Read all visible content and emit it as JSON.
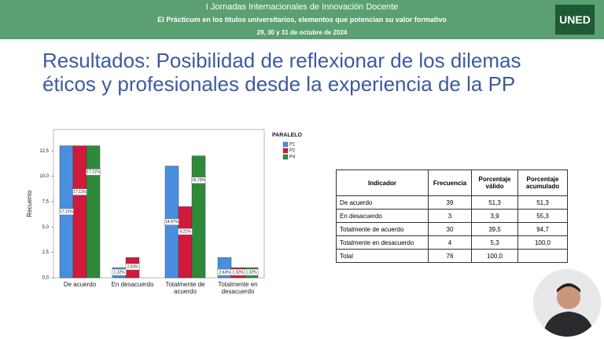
{
  "header": {
    "event": "I Jornadas Internacionales de Innovación Docente",
    "subtitle": "El Prácticum en los títulos universitarios, elementos que potencian su valor formativo",
    "dates": "29, 30 y 31 de octubre de 2024",
    "logo": "UNED"
  },
  "slide_title": "Resultados: Posibilidad de reflexionar de los dilemas éticos y profesionales desde la experiencia de la PP",
  "chart_data": {
    "type": "bar",
    "y_label": "Recuento",
    "legend_title": "PARALELO",
    "categories": [
      "De acuerdo",
      "En desacuerdo",
      "Totalmente de acuerdo",
      "Totalmente en desacuerdo"
    ],
    "series": [
      {
        "name": "P1",
        "color": "#4a8ee0",
        "values": [
          13,
          1,
          11,
          2
        ],
        "value_labels": [
          "17,11%",
          "1,32%",
          "14,47%",
          "2,63%"
        ]
      },
      {
        "name": "P2",
        "color": "#d01a3c",
        "values": [
          13,
          2,
          7,
          1
        ],
        "value_labels": [
          "17,11%",
          "2,63%",
          "9,21%",
          "1,32%"
        ]
      },
      {
        "name": "P4",
        "color": "#2e8a3a",
        "values": [
          13,
          0,
          12,
          1
        ],
        "value_labels": [
          "17,11%",
          null,
          "15,79%",
          "1,32%"
        ]
      }
    ],
    "ylim": [
      0,
      14.6
    ],
    "yticks": [
      {
        "value": 0,
        "label": "0,0"
      },
      {
        "value": 2.5,
        "label": "2,5"
      },
      {
        "value": 5,
        "label": "5,0"
      },
      {
        "value": 7.5,
        "label": "7,5"
      },
      {
        "value": 10,
        "label": "10,0"
      },
      {
        "value": 12.5,
        "label": "12,5"
      }
    ],
    "legend": "top-right"
  },
  "table": {
    "columns": [
      "Indicador",
      "Frecuencia",
      "Porcentaje válido",
      "Porcentaje acumulado"
    ],
    "rows": [
      [
        "De acuerdo",
        "39",
        "51,3",
        "51,3"
      ],
      [
        "En desacuerdo",
        "3",
        "3,9",
        "55,3"
      ],
      [
        "Totalmente de acuerdo",
        "30",
        "39,5",
        "94,7"
      ],
      [
        "Totalmente en desacuerdo",
        "4",
        "5,3",
        "100,0"
      ],
      [
        "Total",
        "76",
        "100,0"
      ]
    ]
  }
}
